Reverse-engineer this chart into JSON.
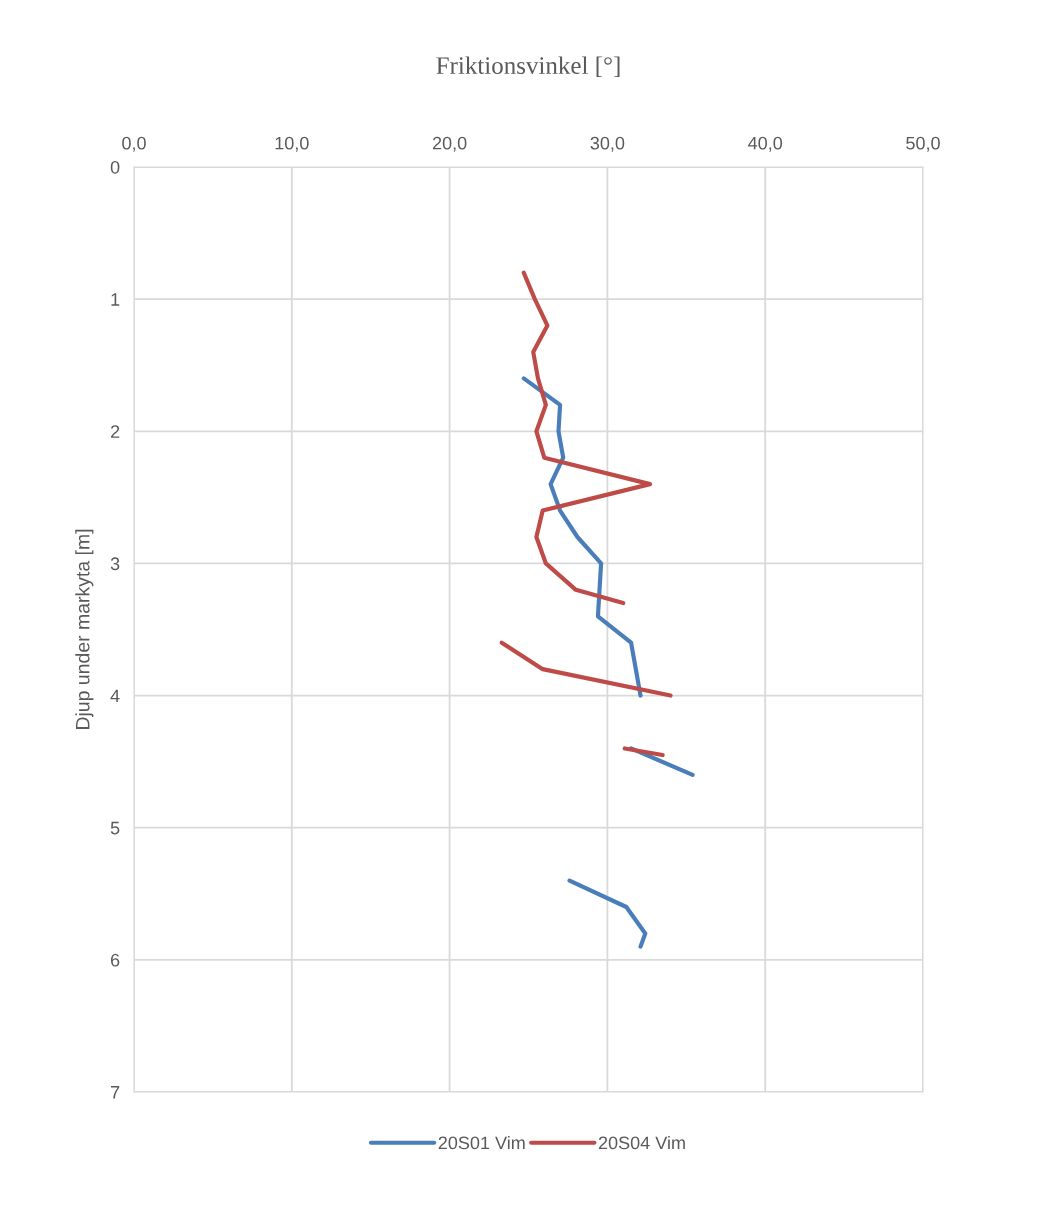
{
  "chart_data": {
    "type": "line",
    "xlabel": "Friktionsvinkel [°]",
    "ylabel": "Djup under markyta [m]",
    "xlim": [
      0,
      50
    ],
    "xticks": [
      {
        "value": 0,
        "label": "0,0"
      },
      {
        "value": 10,
        "label": "10,0"
      },
      {
        "value": 20,
        "label": "20,0"
      },
      {
        "value": 30,
        "label": "30,0"
      },
      {
        "value": 40,
        "label": "40,0"
      },
      {
        "value": 50,
        "label": "50,0"
      }
    ],
    "ylim": [
      7,
      0
    ],
    "yticks": [
      0,
      1,
      2,
      3,
      4,
      5,
      6,
      7
    ],
    "grid": true,
    "legend": "bottom",
    "marker": "none",
    "line_style": "solid",
    "series": [
      {
        "name": "20S01 Vim",
        "color": "#4a7ebb",
        "x": [
          24.7,
          27.0,
          26.9,
          27.2,
          26.4,
          27.0,
          28.1,
          29.6,
          29.4,
          31.5,
          32.1,
          null,
          31.5,
          35.4,
          null,
          27.6,
          31.2,
          32.4,
          32.1
        ],
        "values": [
          1.6,
          1.8,
          2.0,
          2.2,
          2.4,
          2.6,
          2.8,
          3.0,
          3.4,
          3.6,
          4.0,
          null,
          4.4,
          4.6,
          null,
          5.4,
          5.6,
          5.8,
          5.9
        ]
      },
      {
        "name": "20S04 Vim",
        "color": "#be4b48",
        "x": [
          24.7,
          25.4,
          26.2,
          25.3,
          25.6,
          26.1,
          25.5,
          26.0,
          32.7,
          25.9,
          25.5,
          26.1,
          28.0,
          31.0,
          null,
          23.3,
          25.9,
          34.0,
          null,
          31.1,
          33.5
        ],
        "values": [
          0.8,
          1.0,
          1.2,
          1.4,
          1.6,
          1.8,
          2.0,
          2.2,
          2.4,
          2.6,
          2.8,
          3.0,
          3.2,
          3.3,
          null,
          3.6,
          3.8,
          4.0,
          null,
          4.4,
          4.45
        ]
      }
    ]
  }
}
